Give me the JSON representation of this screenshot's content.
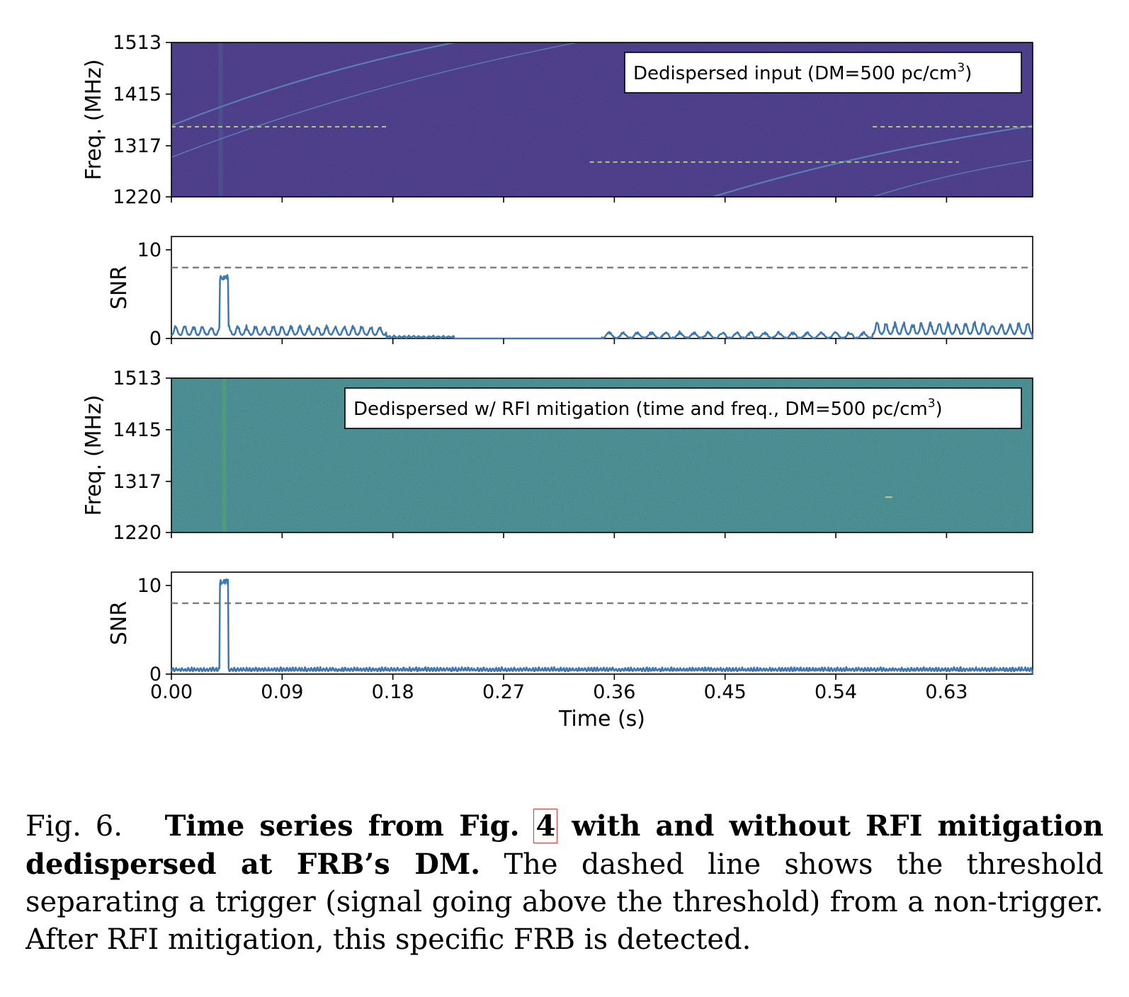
{
  "chart_data": [
    {
      "type": "heatmap",
      "ylabel": "Freq. (MHz)",
      "yticks": [
        "1513",
        "1415",
        "1317",
        "1220"
      ],
      "yrange": [
        1220,
        1513
      ],
      "xrange": [
        0,
        0.7
      ],
      "colormap": "viridis",
      "legend": {
        "text": "Dedispersed input (DM=500 pc/cm",
        "sup": "3",
        "tail": ")",
        "placement": "upper right"
      },
      "background_color": "#3f2f7e",
      "features": {
        "dispersed_sweeps": [
          {
            "t_bottom": 0.0,
            "f_bottom": 1355,
            "t_top": 0.23,
            "f_top": 1513
          },
          {
            "t_bottom": 0.0,
            "f_bottom": 1295,
            "t_top": 0.33,
            "f_top": 1513
          },
          {
            "t_bottom": 0.44,
            "f_bottom": 1220,
            "t_top": 0.7,
            "f_top": 1355
          },
          {
            "t_bottom": 0.57,
            "f_bottom": 1220,
            "t_top": 0.7,
            "f_top": 1290
          }
        ],
        "rfi_dashed_segments": [
          {
            "t_start": 0.0,
            "t_end": 0.175,
            "freq": 1353
          },
          {
            "t_start": 0.57,
            "t_end": 0.7,
            "freq": 1353
          },
          {
            "t_start": 0.34,
            "t_end": 0.64,
            "freq": 1286
          }
        ],
        "pulse_time": 0.04
      }
    },
    {
      "type": "line",
      "ylabel": "SNR",
      "yticks": [
        "10",
        "0"
      ],
      "ylim": [
        0,
        11.5
      ],
      "xrange": [
        0,
        0.7
      ],
      "threshold": 8,
      "line_color": "#3d78b0",
      "series": [
        {
          "pulse": {
            "t_start": 0.039,
            "t_end": 0.046,
            "peak": 7.0
          },
          "segments": [
            {
              "t_start": 0.0,
              "t_end": 0.175,
              "base": 0.35,
              "amplitude": 0.9,
              "period": 0.0072
            },
            {
              "t_start": 0.175,
              "t_end": 0.23,
              "base": 0.05,
              "amplitude": 0.15,
              "period": 0.004
            },
            {
              "t_start": 0.35,
              "t_end": 0.57,
              "base": 0.02,
              "amplitude": 0.55,
              "period": 0.0115
            },
            {
              "t_start": 0.57,
              "t_end": 0.7,
              "base": 0.45,
              "amplitude": 1.1,
              "period": 0.0072
            }
          ]
        }
      ]
    },
    {
      "type": "heatmap",
      "ylabel": "Freq. (MHz)",
      "yticks": [
        "1513",
        "1415",
        "1317",
        "1220"
      ],
      "yrange": [
        1220,
        1513
      ],
      "xrange": [
        0,
        0.7
      ],
      "colormap": "viridis",
      "legend": {
        "text": "Dedispersed w/ RFI mitigation (time and freq., DM=500 pc/cm",
        "sup": "3",
        "tail": ")",
        "placement": "upper right"
      },
      "background_color": "#33707f",
      "features": {
        "pulse_time": 0.043,
        "small_feature": {
          "t": 0.583,
          "freq": 1287
        }
      }
    },
    {
      "type": "line",
      "ylabel": "SNR",
      "yticks": [
        "10",
        "0"
      ],
      "ylim": [
        0,
        11.5
      ],
      "xrange": [
        0,
        0.7
      ],
      "threshold": 8,
      "line_color": "#3d78b0",
      "xlabel": "Time (s)",
      "xticks": [
        "0.00",
        "0.09",
        "0.18",
        "0.27",
        "0.36",
        "0.45",
        "0.54",
        "0.63"
      ],
      "series": [
        {
          "pulse": {
            "t_start": 0.039,
            "t_end": 0.046,
            "peak": 10.5
          },
          "segments": [
            {
              "t_start": 0.0,
              "t_end": 0.7,
              "base": 0.3,
              "amplitude": 0.35,
              "period": 0.0025
            }
          ]
        }
      ]
    }
  ],
  "caption": {
    "fig_label": "Fig. 6.",
    "bold_1": "Time series from Fig.",
    "fig_ref": "4",
    "bold_2": "with and without RFI mitigation dedispersed at FRB’s DM.",
    "text": "The dashed line shows the threshold separating a trigger (signal going above the threshold) from a non-trigger. After RFI mitigation, this specific FRB is detected."
  }
}
